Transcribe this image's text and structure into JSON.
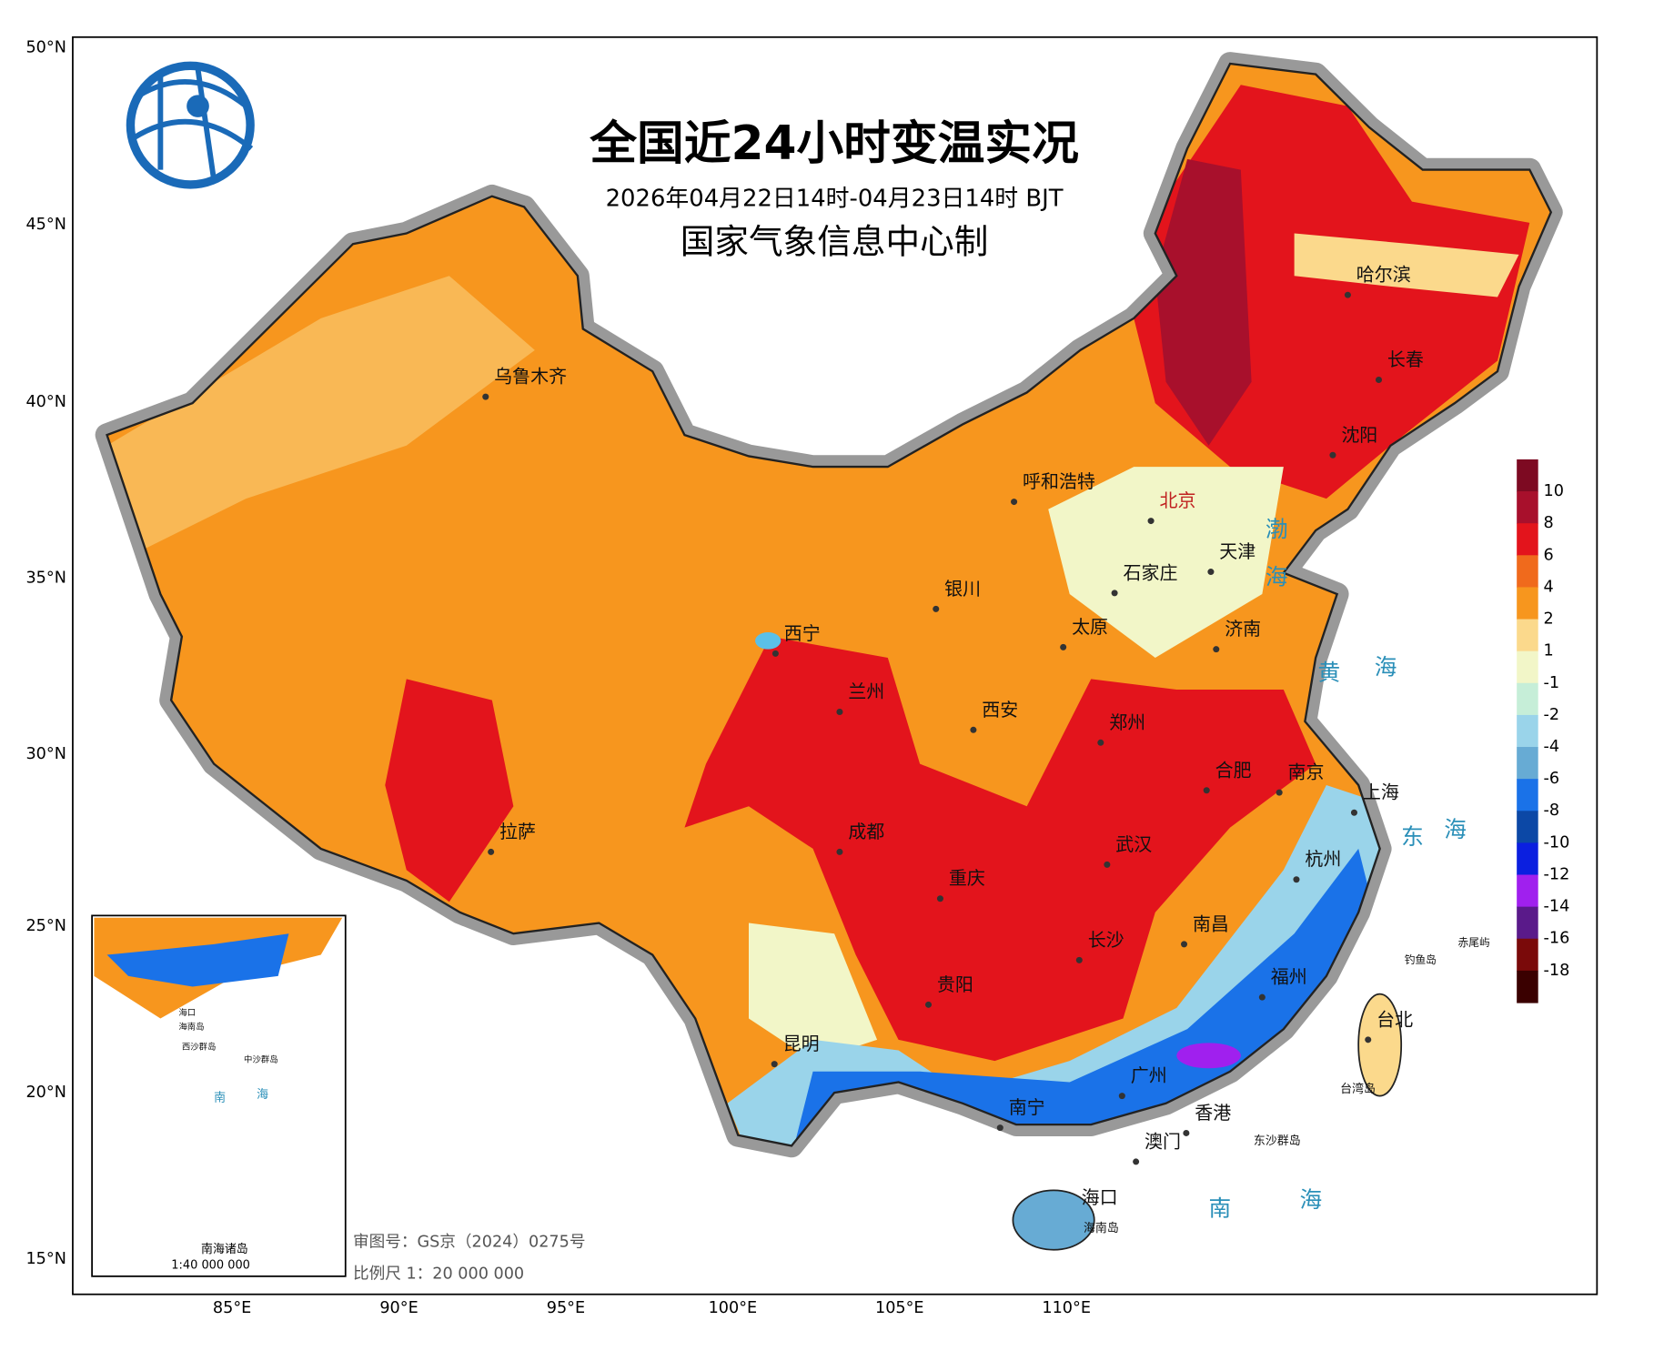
{
  "header": {
    "title": "全国近24小时变温实况",
    "subtitle": "2026年04月22日14时-04月23日14时 BJT",
    "producer": "国家气象信息中心制"
  },
  "axes": {
    "lat_labels": [
      "50°N",
      "45°N",
      "40°N",
      "35°N",
      "30°N",
      "25°N",
      "20°N",
      "15°N"
    ],
    "lon_labels": [
      "85°E",
      "90°E",
      "95°E",
      "100°E",
      "105°E",
      "110°E"
    ]
  },
  "legend": {
    "levels": [
      10,
      8,
      6,
      4,
      2,
      1,
      -1,
      -2,
      -4,
      -6,
      -8,
      -10,
      -12,
      -14,
      -16,
      -18
    ],
    "colors": [
      "#7d0a22",
      "#a8102c",
      "#e3141c",
      "#f06a1c",
      "#f7961e",
      "#fbd98c",
      "#f2f6c8",
      "#c6eed8",
      "#9ad4ea",
      "#67abd4",
      "#1a72e8",
      "#0c48a6",
      "#0b1fe0",
      "#a020ee",
      "#5a1a8a",
      "#7a0a0a",
      "#3a0000"
    ]
  },
  "cities": [
    "乌鲁木齐",
    "哈尔滨",
    "长春",
    "沈阳",
    "呼和浩特",
    "北京",
    "天津",
    "石家庄",
    "银川",
    "太原",
    "济南",
    "西宁",
    "兰州",
    "西安",
    "郑州",
    "合肥",
    "南京",
    "上海",
    "拉萨",
    "成都",
    "武汉",
    "杭州",
    "重庆",
    "长沙",
    "南昌",
    "贵阳",
    "福州",
    "台北",
    "昆明",
    "广州",
    "南宁",
    "香港",
    "澳门",
    "海口",
    "海南岛",
    "钓鱼岛",
    "赤尾屿",
    "台湾岛",
    "东沙群岛"
  ],
  "seas": [
    "渤",
    "海",
    "黄",
    "海",
    "东",
    "海",
    "南",
    "海"
  ],
  "inset": {
    "title": "南海诸岛",
    "scale": "1:40 000 000",
    "labels": [
      "海口",
      "海南岛",
      "西沙群岛",
      "中沙群岛",
      "南",
      "海"
    ]
  },
  "footer": {
    "approval": "审图号：GS京（2024）0275号",
    "scale": "比例尺 1：20 000 000"
  }
}
